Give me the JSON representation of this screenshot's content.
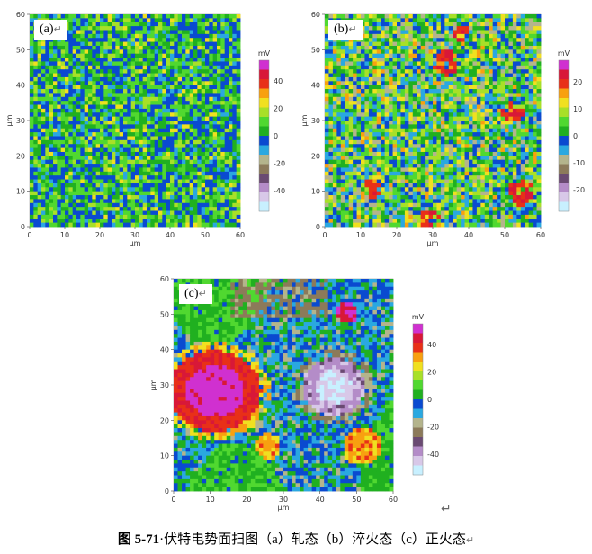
{
  "figure": {
    "caption_prefix": "图 5-71",
    "caption_text": "伏特电势面扫图（a）轧态（b）淬火态（c）正火态",
    "return_mark": "↵"
  },
  "chart_data": [
    {
      "type": "heatmap",
      "panel_label": "(a)",
      "xlabel": "μm",
      "ylabel": "μm",
      "xlim": [
        0,
        60
      ],
      "ylim": [
        0,
        60
      ],
      "xticks": [
        0,
        10,
        20,
        30,
        40,
        50,
        60
      ],
      "yticks": [
        0,
        10,
        20,
        30,
        40,
        50,
        60
      ],
      "colorbar_unit": "mV",
      "colorbar_ticks": [
        40,
        20,
        0,
        -20,
        -40
      ],
      "colorbar_range": [
        -55,
        55
      ],
      "description_values": "uniform mostly green (~0 mV) with blue and yellow speckle"
    },
    {
      "type": "heatmap",
      "panel_label": "(b)",
      "xlabel": "μm",
      "ylabel": "μm",
      "xlim": [
        0,
        60
      ],
      "ylim": [
        0,
        60
      ],
      "xticks": [
        0,
        10,
        20,
        30,
        40,
        50,
        60
      ],
      "yticks": [
        0,
        10,
        20,
        30,
        40,
        50,
        60
      ],
      "colorbar_unit": "mV",
      "colorbar_ticks": [
        20,
        10,
        0,
        -10,
        -20
      ],
      "colorbar_range": [
        -28,
        28
      ],
      "description_values": "mixed green/blue/yellow with scattered red patches"
    },
    {
      "type": "heatmap",
      "panel_label": "(c)",
      "xlabel": "μm",
      "ylabel": "μm",
      "xlim": [
        0,
        60
      ],
      "ylim": [
        0,
        60
      ],
      "xticks": [
        0,
        10,
        20,
        30,
        40,
        50,
        60
      ],
      "yticks": [
        0,
        10,
        20,
        30,
        40,
        50,
        60
      ],
      "colorbar_unit": "mV",
      "colorbar_ticks": [
        40,
        20,
        0,
        -20,
        -40
      ],
      "colorbar_range": [
        -55,
        55
      ],
      "description_values": "large magenta/red region upper-left, purple/white region center-right, blue and green background"
    }
  ],
  "colormap": [
    "#c8f0ff",
    "#d8c8e8",
    "#b48cc8",
    "#6a4a72",
    "#8c7a5a",
    "#b4b48c",
    "#2aa8e0",
    "#0a4ad0",
    "#20b020",
    "#50d830",
    "#a8e028",
    "#f0e020",
    "#f8a010",
    "#e83018",
    "#d81838",
    "#d030d0"
  ]
}
